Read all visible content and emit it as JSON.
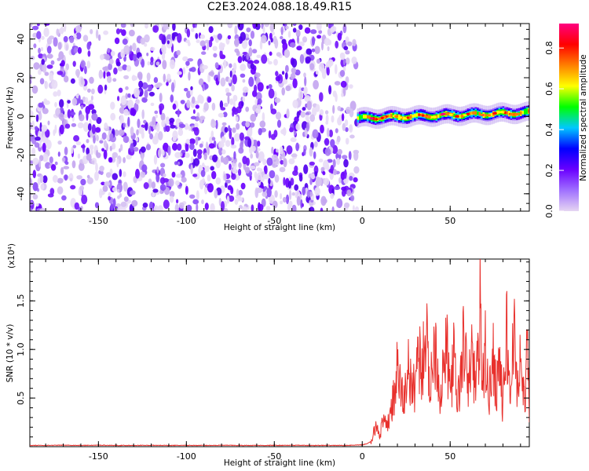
{
  "title": "C2E3.2024.088.18.49.R15",
  "chart_data": [
    {
      "type": "heatmap",
      "xlabel": "Height of straight line (km)",
      "ylabel": "Frequency (Hz)",
      "xlim": [
        -189,
        95
      ],
      "ylim": [
        -49,
        48
      ],
      "xticks": [
        -150,
        -100,
        -50,
        0,
        50
      ],
      "yticks": [
        -40,
        -20,
        0,
        20,
        40
      ],
      "regions": [
        {
          "x_range": [
            -189,
            -3
          ],
          "content": "scattered low-amplitude noise across all frequencies",
          "amplitude_range": [
            0.0,
            0.15
          ]
        },
        {
          "x_range": [
            -3,
            95
          ],
          "content": "narrow signal band centered near 0 Hz",
          "center_frequency": [
            -1,
            2
          ],
          "band_halfwidth": 3,
          "peak_amplitude": 0.85
        }
      ],
      "colorbar": {
        "label": "Normalized spectral amplitude",
        "range": [
          0.0,
          0.92
        ],
        "ticks": [
          "0.0",
          "0.2",
          "0.4",
          "0.6",
          "0.8"
        ],
        "colormap": [
          "#e6d6f2",
          "#a070ff",
          "#6a00ff",
          "#0000ff",
          "#00c8ff",
          "#00ff00",
          "#ffff00",
          "#ff7f00",
          "#ff0000",
          "#ff0080"
        ]
      }
    },
    {
      "type": "line",
      "xlabel": "Height of straight line (km)",
      "ylabel": "SNR (10 * v/v)",
      "multiplier_label": "(x10⁴)",
      "xlim": [
        -189,
        95
      ],
      "ylim": [
        0,
        1.93
      ],
      "xticks": [
        -150,
        -100,
        -50,
        0,
        50
      ],
      "yticks": [
        "0.5",
        "1.0",
        "1.5"
      ],
      "color": "#e8302c",
      "series": [
        {
          "x": [
            -189,
            -180,
            -170,
            -160,
            -150,
            -140,
            -130,
            -120,
            -110,
            -100,
            -90,
            -80,
            -70,
            -60,
            -50,
            -40,
            -30,
            -20,
            -10,
            -5,
            0,
            3,
            5,
            6,
            8,
            10,
            12,
            14,
            16,
            18,
            20,
            22,
            24,
            26,
            28,
            30,
            32,
            34,
            36,
            38,
            40,
            42,
            44,
            46,
            48,
            50,
            52,
            54,
            56,
            58,
            60,
            62,
            64,
            66,
            67,
            68,
            70,
            72,
            74,
            76,
            78,
            80,
            82,
            84,
            85,
            86,
            88,
            90,
            92,
            94,
            95
          ],
          "values": [
            0.01,
            0.01,
            0.012,
            0.01,
            0.012,
            0.01,
            0.01,
            0.011,
            0.01,
            0.01,
            0.01,
            0.011,
            0.01,
            0.01,
            0.01,
            0.011,
            0.01,
            0.01,
            0.01,
            0.012,
            0.015,
            0.03,
            0.05,
            0.12,
            0.28,
            0.15,
            0.32,
            0.22,
            0.45,
            0.6,
            0.95,
            0.7,
            0.55,
            1.1,
            0.65,
            0.8,
            1.25,
            0.9,
            1.55,
            0.75,
            1.05,
            1.35,
            0.6,
            0.95,
            1.2,
            0.7,
            1.1,
            0.55,
            0.85,
            1.4,
            0.65,
            1.2,
            0.8,
            1.05,
            1.93,
            0.6,
            1.25,
            0.5,
            1.3,
            0.7,
            1.15,
            0.45,
            1.5,
            0.6,
            0.95,
            1.53,
            0.75,
            1.1,
            0.55,
            1.2,
            0.25
          ]
        }
      ]
    }
  ]
}
